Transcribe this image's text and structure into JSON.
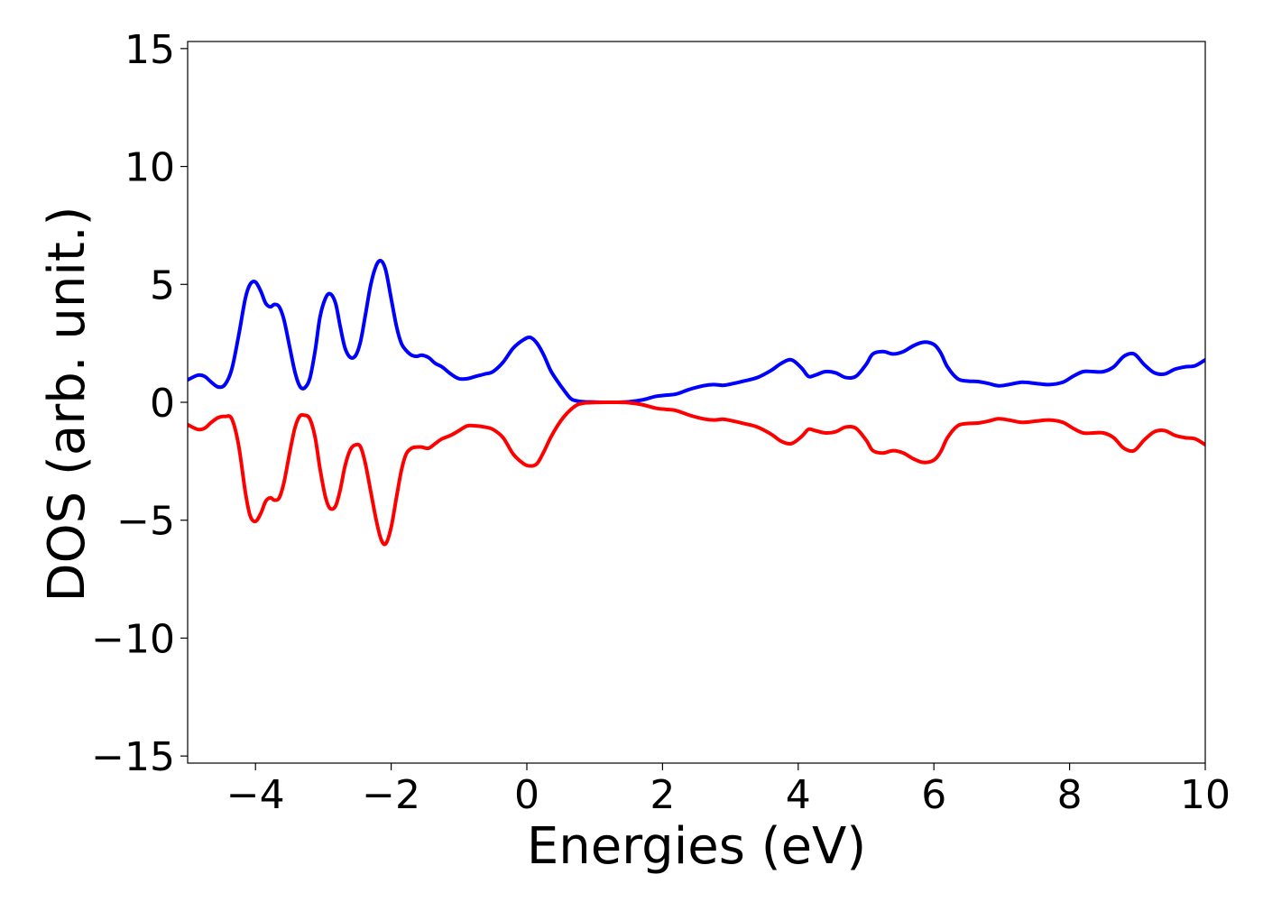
{
  "chart_data": {
    "type": "line",
    "title": "",
    "xlabel": "Energies (eV)",
    "ylabel": "DOS (arb. unit.)",
    "xlim": [
      -5,
      10
    ],
    "ylim": [
      -15.3,
      15.3
    ],
    "grid": false,
    "legend": "none",
    "xticks": [
      -4,
      -2,
      0,
      2,
      4,
      6,
      8,
      10
    ],
    "xtick_labels": [
      "−4",
      "−2",
      "0",
      "2",
      "4",
      "6",
      "8",
      "10"
    ],
    "yticks": [
      15,
      10,
      5,
      0,
      -5,
      -10,
      -15
    ],
    "ytick_labels": [
      "15",
      "10",
      "5",
      "0",
      "−5",
      "−10",
      "−15"
    ],
    "series": [
      {
        "color": "#0000ff",
        "x": [
          -5.0,
          -4.85,
          -4.75,
          -4.65,
          -4.55,
          -4.45,
          -4.35,
          -4.25,
          -4.15,
          -4.08,
          -4.0,
          -3.92,
          -3.85,
          -3.78,
          -3.72,
          -3.65,
          -3.58,
          -3.5,
          -3.42,
          -3.35,
          -3.28,
          -3.2,
          -3.12,
          -3.05,
          -2.97,
          -2.9,
          -2.82,
          -2.75,
          -2.68,
          -2.6,
          -2.52,
          -2.45,
          -2.38,
          -2.3,
          -2.22,
          -2.15,
          -2.08,
          -2.0,
          -1.92,
          -1.85,
          -1.78,
          -1.7,
          -1.62,
          -1.55,
          -1.45,
          -1.35,
          -1.25,
          -1.12,
          -1.0,
          -0.88,
          -0.75,
          -0.62,
          -0.5,
          -0.35,
          -0.2,
          -0.05,
          0.05,
          0.15,
          0.25,
          0.35,
          0.45,
          0.55,
          0.65,
          0.75,
          0.85,
          1.0,
          1.15,
          1.3,
          1.5,
          1.7,
          1.9,
          2.05,
          2.2,
          2.4,
          2.6,
          2.75,
          2.9,
          3.05,
          3.2,
          3.4,
          3.6,
          3.75,
          3.9,
          4.05,
          4.15,
          4.25,
          4.4,
          4.55,
          4.7,
          4.85,
          5.0,
          5.1,
          5.25,
          5.4,
          5.55,
          5.7,
          5.85,
          6.0,
          6.1,
          6.2,
          6.35,
          6.5,
          6.65,
          6.8,
          6.95,
          7.1,
          7.3,
          7.5,
          7.7,
          7.9,
          8.05,
          8.2,
          8.35,
          8.5,
          8.65,
          8.8,
          8.95,
          9.1,
          9.25,
          9.4,
          9.55,
          9.7,
          9.85,
          10.0
        ],
        "values": [
          0.95,
          1.15,
          1.1,
          0.85,
          0.65,
          0.75,
          1.4,
          2.8,
          4.4,
          5.0,
          5.1,
          4.7,
          4.2,
          4.05,
          4.15,
          4.05,
          3.5,
          2.4,
          1.3,
          0.7,
          0.6,
          1.0,
          2.2,
          3.6,
          4.4,
          4.6,
          4.2,
          3.2,
          2.3,
          1.9,
          2.0,
          2.6,
          3.7,
          5.0,
          5.8,
          6.0,
          5.6,
          4.4,
          3.2,
          2.5,
          2.2,
          2.0,
          1.95,
          2.0,
          1.9,
          1.65,
          1.5,
          1.2,
          1.0,
          1.0,
          1.1,
          1.2,
          1.3,
          1.7,
          2.3,
          2.65,
          2.75,
          2.5,
          2.0,
          1.35,
          0.9,
          0.5,
          0.15,
          0.05,
          0.02,
          0.01,
          0.0,
          0.0,
          0.02,
          0.1,
          0.25,
          0.3,
          0.35,
          0.55,
          0.7,
          0.75,
          0.72,
          0.8,
          0.9,
          1.05,
          1.35,
          1.65,
          1.8,
          1.45,
          1.1,
          1.15,
          1.3,
          1.25,
          1.05,
          1.1,
          1.6,
          2.05,
          2.15,
          2.05,
          2.15,
          2.4,
          2.55,
          2.45,
          2.1,
          1.5,
          1.0,
          0.9,
          0.88,
          0.8,
          0.7,
          0.75,
          0.85,
          0.8,
          0.75,
          0.85,
          1.1,
          1.3,
          1.3,
          1.3,
          1.5,
          1.95,
          2.05,
          1.6,
          1.25,
          1.2,
          1.4,
          1.5,
          1.55,
          1.8
        ],
        "sign": 1
      },
      {
        "color": "#ff0000",
        "x": [
          -5.0,
          -4.85,
          -4.75,
          -4.65,
          -4.55,
          -4.45,
          -4.35,
          -4.25,
          -4.15,
          -4.08,
          -4.0,
          -3.92,
          -3.85,
          -3.78,
          -3.72,
          -3.65,
          -3.58,
          -3.5,
          -3.42,
          -3.35,
          -3.28,
          -3.2,
          -3.12,
          -3.05,
          -2.97,
          -2.9,
          -2.82,
          -2.75,
          -2.68,
          -2.6,
          -2.52,
          -2.45,
          -2.38,
          -2.3,
          -2.22,
          -2.15,
          -2.08,
          -2.0,
          -1.92,
          -1.85,
          -1.78,
          -1.7,
          -1.62,
          -1.55,
          -1.45,
          -1.35,
          -1.25,
          -1.12,
          -1.0,
          -0.88,
          -0.75,
          -0.62,
          -0.5,
          -0.35,
          -0.2,
          -0.05,
          0.05,
          0.15,
          0.25,
          0.35,
          0.45,
          0.55,
          0.65,
          0.75,
          0.85,
          1.0,
          1.15,
          1.3,
          1.5,
          1.7,
          1.9,
          2.05,
          2.2,
          2.4,
          2.6,
          2.75,
          2.9,
          3.05,
          3.2,
          3.4,
          3.6,
          3.75,
          3.9,
          4.05,
          4.15,
          4.25,
          4.4,
          4.55,
          4.7,
          4.85,
          5.0,
          5.1,
          5.25,
          5.4,
          5.55,
          5.7,
          5.85,
          6.0,
          6.1,
          6.2,
          6.35,
          6.5,
          6.65,
          6.8,
          6.95,
          7.1,
          7.3,
          7.5,
          7.7,
          7.9,
          8.05,
          8.2,
          8.35,
          8.5,
          8.65,
          8.8,
          8.95,
          9.1,
          9.25,
          9.4,
          9.55,
          9.7,
          9.85,
          10.0
        ],
        "values": [
          -0.95,
          -1.15,
          -1.1,
          -0.85,
          -0.65,
          -0.6,
          -0.7,
          -1.8,
          -3.8,
          -4.8,
          -5.05,
          -4.7,
          -4.2,
          -4.05,
          -4.15,
          -4.05,
          -3.4,
          -2.2,
          -1.1,
          -0.6,
          -0.55,
          -0.7,
          -1.5,
          -2.8,
          -4.0,
          -4.5,
          -4.4,
          -3.7,
          -2.7,
          -2.0,
          -1.8,
          -1.9,
          -2.6,
          -3.8,
          -5.0,
          -5.8,
          -6.0,
          -5.3,
          -4.0,
          -2.9,
          -2.2,
          -1.95,
          -1.9,
          -1.9,
          -1.95,
          -1.75,
          -1.55,
          -1.4,
          -1.2,
          -1.0,
          -1.0,
          -1.05,
          -1.15,
          -1.5,
          -2.2,
          -2.6,
          -2.7,
          -2.6,
          -2.1,
          -1.5,
          -1.0,
          -0.6,
          -0.3,
          -0.1,
          -0.03,
          -0.01,
          0.0,
          0.0,
          -0.02,
          -0.1,
          -0.25,
          -0.3,
          -0.35,
          -0.55,
          -0.7,
          -0.75,
          -0.72,
          -0.8,
          -0.9,
          -1.05,
          -1.35,
          -1.65,
          -1.75,
          -1.45,
          -1.15,
          -1.2,
          -1.3,
          -1.25,
          -1.05,
          -1.1,
          -1.6,
          -2.05,
          -2.15,
          -2.05,
          -2.15,
          -2.4,
          -2.55,
          -2.45,
          -2.1,
          -1.5,
          -1.0,
          -0.9,
          -0.88,
          -0.8,
          -0.7,
          -0.75,
          -0.85,
          -0.8,
          -0.75,
          -0.85,
          -1.1,
          -1.3,
          -1.3,
          -1.3,
          -1.5,
          -1.95,
          -2.05,
          -1.6,
          -1.25,
          -1.2,
          -1.4,
          -1.5,
          -1.55,
          -1.8
        ],
        "sign": -1
      }
    ]
  }
}
